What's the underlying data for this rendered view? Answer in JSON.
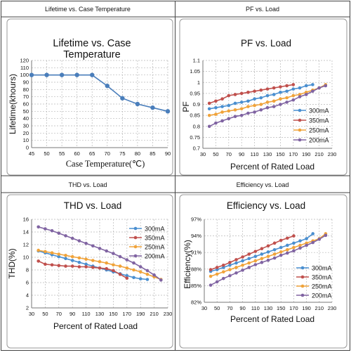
{
  "chart_data": [
    {
      "type": "line",
      "panel_header": "Lifetime vs. Case Temperature",
      "title": "Lifetime vs. Case Temperature",
      "xlabel": "Case Temperature(℃)",
      "ylabel": "Lifetime(khours)",
      "x_ticks": [
        45,
        50,
        55,
        60,
        65,
        70,
        75,
        80,
        85,
        90
      ],
      "y_ticks": [
        0,
        10,
        20,
        30,
        40,
        50,
        60,
        70,
        80,
        90,
        100,
        110,
        120
      ],
      "xlim": [
        45,
        90
      ],
      "ylim": [
        0,
        120
      ],
      "grid": true,
      "legend": "none",
      "series": [
        {
          "color": "#4a7ebb",
          "x": [
            45,
            50,
            55,
            60,
            65,
            70,
            75,
            80,
            85,
            90
          ],
          "y": [
            100,
            100,
            100,
            100,
            100,
            85,
            68,
            60,
            55,
            50
          ]
        }
      ]
    },
    {
      "type": "line",
      "panel_header": "PF vs. Load",
      "title": "PF vs. Load",
      "xlabel": "Percent of Rated Load",
      "ylabel": "PF",
      "x_ticks": [
        "30",
        "50",
        "70",
        "90",
        "110",
        "130",
        "150",
        "170",
        "190",
        "210",
        "230"
      ],
      "y_ticks": [
        "0.7",
        "0.75",
        "0.8",
        "0.85",
        "0.9",
        "0.95",
        "1",
        "1.05",
        "1.1"
      ],
      "xlim": [
        30,
        230
      ],
      "ylim": [
        0.7,
        1.1
      ],
      "grid": true,
      "legend": "right",
      "series": [
        {
          "name": "300mA",
          "color": "#4a8fd0",
          "x": [
            40,
            50,
            60,
            70,
            80,
            90,
            100,
            110,
            120,
            130,
            140,
            150,
            160,
            170,
            180,
            190,
            200
          ],
          "y": [
            0.88,
            0.885,
            0.89,
            0.895,
            0.905,
            0.91,
            0.915,
            0.925,
            0.93,
            0.94,
            0.945,
            0.955,
            0.96,
            0.97,
            0.975,
            0.985,
            0.99
          ]
        },
        {
          "name": "350mA",
          "color": "#c0504d",
          "x": [
            40,
            50,
            60,
            70,
            80,
            90,
            100,
            110,
            120,
            130,
            140,
            150,
            160,
            170
          ],
          "y": [
            0.905,
            0.915,
            0.925,
            0.94,
            0.945,
            0.95,
            0.955,
            0.96,
            0.965,
            0.97,
            0.975,
            0.98,
            0.985,
            0.99
          ]
        },
        {
          "name": "250mA",
          "color": "#f0a33a",
          "x": [
            40,
            50,
            60,
            70,
            80,
            90,
            100,
            110,
            120,
            130,
            140,
            150,
            160,
            170,
            180,
            190,
            200,
            210,
            220
          ],
          "y": [
            0.85,
            0.855,
            0.865,
            0.87,
            0.875,
            0.88,
            0.89,
            0.895,
            0.9,
            0.91,
            0.915,
            0.925,
            0.93,
            0.94,
            0.945,
            0.955,
            0.965,
            0.975,
            0.99
          ]
        },
        {
          "name": "200mA",
          "color": "#8064a2",
          "x": [
            40,
            50,
            60,
            70,
            80,
            90,
            100,
            110,
            120,
            130,
            140,
            150,
            160,
            170,
            180,
            190,
            200,
            210,
            220
          ],
          "y": [
            0.8,
            0.815,
            0.825,
            0.835,
            0.845,
            0.85,
            0.86,
            0.865,
            0.875,
            0.885,
            0.89,
            0.9,
            0.91,
            0.92,
            0.935,
            0.945,
            0.96,
            0.975,
            0.985
          ]
        }
      ]
    },
    {
      "type": "line",
      "panel_header": "THD vs. Load",
      "title": "THD vs. Load",
      "xlabel": "Percent of Rated Load",
      "ylabel": "THD(%)",
      "x_ticks": [
        "30",
        "50",
        "70",
        "90",
        "110",
        "130",
        "150",
        "170",
        "190",
        "210",
        "230"
      ],
      "y_ticks": [
        "2",
        "4",
        "6",
        "8",
        "10",
        "12",
        "14",
        "16"
      ],
      "xlim": [
        30,
        230
      ],
      "ylim": [
        2,
        16
      ],
      "grid": true,
      "legend": "top-right",
      "series": [
        {
          "name": "300mA",
          "color": "#4a8fd0",
          "x": [
            40,
            50,
            60,
            70,
            80,
            90,
            100,
            110,
            120,
            130,
            140,
            150,
            160,
            170,
            180,
            190,
            200
          ],
          "y": [
            11,
            10.7,
            10.4,
            10.1,
            9.8,
            9.5,
            9.2,
            8.9,
            8.6,
            8.3,
            8.0,
            7.7,
            7.4,
            7.1,
            6.8,
            6.6,
            6.5
          ]
        },
        {
          "name": "350mA",
          "color": "#c0504d",
          "x": [
            40,
            50,
            60,
            70,
            80,
            90,
            100,
            110,
            120,
            130,
            140,
            150,
            160,
            170
          ],
          "y": [
            9.4,
            8.9,
            8.8,
            8.7,
            8.6,
            8.6,
            8.5,
            8.5,
            8.4,
            8.3,
            8.2,
            7.9,
            7.3,
            6.7
          ]
        },
        {
          "name": "250mA",
          "color": "#f0a33a",
          "x": [
            40,
            50,
            60,
            70,
            80,
            90,
            100,
            110,
            120,
            130,
            140,
            150,
            160,
            170,
            180,
            190,
            200,
            210,
            220
          ],
          "y": [
            11.1,
            10.9,
            10.7,
            10.5,
            10.3,
            10.1,
            9.9,
            9.7,
            9.5,
            9.3,
            9.1,
            8.8,
            8.6,
            8.3,
            8.0,
            7.7,
            7.3,
            6.9,
            6.5
          ]
        },
        {
          "name": "200mA",
          "color": "#8064a2",
          "x": [
            40,
            50,
            60,
            70,
            80,
            90,
            100,
            110,
            120,
            130,
            140,
            150,
            160,
            170,
            180,
            190,
            200,
            210,
            220
          ],
          "y": [
            14.8,
            14.5,
            14.2,
            13.8,
            13.4,
            13.0,
            12.6,
            12.2,
            11.8,
            11.4,
            11.0,
            10.6,
            10.1,
            9.6,
            9.1,
            8.5,
            7.9,
            7.2,
            6.4
          ]
        }
      ]
    },
    {
      "type": "line",
      "panel_header": "Efficiency vs. Load",
      "title": "Efficiency vs. Load",
      "xlabel": "Percent of Rated Load",
      "ylabel": "Efficiency(%)",
      "x_ticks": [
        "30",
        "50",
        "70",
        "90",
        "110",
        "130",
        "150",
        "170",
        "190",
        "210",
        "230"
      ],
      "y_ticks": [
        "82%",
        "85%",
        "88%",
        "91%",
        "94%",
        "97%"
      ],
      "xlim": [
        30,
        230
      ],
      "ylim": [
        82,
        97
      ],
      "grid": true,
      "legend": "right",
      "series": [
        {
          "name": "300mA",
          "color": "#4a8fd0",
          "x": [
            40,
            50,
            60,
            70,
            80,
            90,
            100,
            110,
            120,
            130,
            140,
            150,
            160,
            170,
            180,
            190,
            200
          ],
          "y": [
            87.6,
            87.9,
            88.3,
            88.7,
            89.1,
            89.5,
            89.9,
            90.3,
            90.7,
            91.1,
            91.5,
            91.9,
            92.3,
            92.7,
            93.1,
            93.5,
            94.4
          ]
        },
        {
          "name": "350mA",
          "color": "#c0504d",
          "x": [
            40,
            50,
            60,
            70,
            80,
            90,
            100,
            110,
            120,
            130,
            140,
            150,
            160,
            170
          ],
          "y": [
            87.9,
            88.3,
            88.7,
            89.2,
            89.7,
            90.2,
            90.7,
            91.2,
            91.7,
            92.2,
            92.7,
            93.2,
            93.6,
            94.0
          ]
        },
        {
          "name": "250mA",
          "color": "#f0a33a",
          "x": [
            40,
            50,
            60,
            70,
            80,
            90,
            100,
            110,
            120,
            130,
            140,
            150,
            160,
            170,
            180,
            190,
            200,
            210,
            220
          ],
          "y": [
            86.7,
            87.1,
            87.5,
            87.9,
            88.3,
            88.7,
            89.1,
            89.5,
            89.9,
            90.3,
            90.7,
            91.1,
            91.5,
            91.9,
            92.3,
            92.7,
            93.1,
            93.5,
            94.4
          ]
        },
        {
          "name": "200mA",
          "color": "#8064a2",
          "x": [
            40,
            50,
            60,
            70,
            80,
            90,
            100,
            110,
            120,
            130,
            140,
            150,
            160,
            170,
            180,
            190,
            200,
            210,
            220
          ],
          "y": [
            85.1,
            85.7,
            86.3,
            86.8,
            87.3,
            87.8,
            88.3,
            88.8,
            89.2,
            89.6,
            90.0,
            90.5,
            90.9,
            91.3,
            91.8,
            92.3,
            92.8,
            93.4,
            94.1
          ]
        }
      ]
    }
  ]
}
